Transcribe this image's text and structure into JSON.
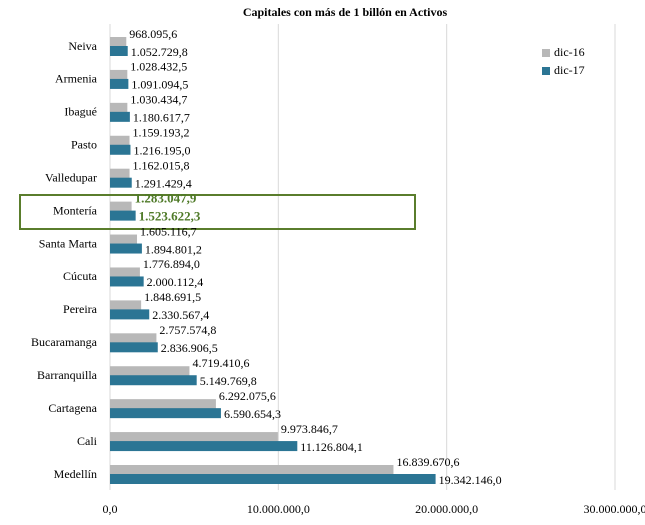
{
  "chart_data": {
    "type": "bar",
    "orientation": "horizontal",
    "title": "Capitales  con más de 1 billón en Activos",
    "categories": [
      "Neiva",
      "Armenia",
      "Ibagué",
      "Pasto",
      "Valledupar",
      "Montería",
      "Santa Marta",
      "Cúcuta",
      "Pereira",
      "Bucaramanga",
      "Barranquilla",
      "Cartagena",
      "Cali",
      "Medellín"
    ],
    "series": [
      {
        "name": "dic-16",
        "color": "#b8b8b8",
        "values": [
          968095.6,
          1028432.5,
          1030434.7,
          1159193.2,
          1162015.8,
          1283047.9,
          1605116.7,
          1776894.0,
          1848691.5,
          2757574.8,
          4719410.6,
          6292075.6,
          9973846.7,
          16839670.6
        ],
        "value_labels": [
          "968.095,6",
          "1.028.432,5",
          "1.030.434,7",
          "1.159.193,2",
          "1.162.015,8",
          "1.283.047,9",
          "1.605.116,7",
          "1.776.894,0",
          "1.848.691,5",
          "2.757.574,8",
          "4.719.410,6",
          "6.292.075,6",
          "9.973.846,7",
          "16.839.670,6"
        ]
      },
      {
        "name": "dic-17",
        "color": "#2b7594",
        "values": [
          1052729.8,
          1091094.5,
          1180617.7,
          1216195.0,
          1291429.4,
          1523622.3,
          1894801.2,
          2000112.4,
          2330567.4,
          2836906.5,
          5149769.8,
          6590654.3,
          11126804.1,
          19342146.0
        ],
        "value_labels": [
          "1.052.729,8",
          "1.091.094,5",
          "1.180.617,7",
          "1.216.195,0",
          "1.291.429,4",
          "1.523.622,3",
          "1.894.801,2",
          "2.000.112,4",
          "2.330.567,4",
          "2.836.906,5",
          "5.149.769,8",
          "6.590.654,3",
          "11.126.804,1",
          "19.342.146,0"
        ]
      }
    ],
    "xlim": [
      0,
      30000000
    ],
    "xticks": [
      {
        "value": 0,
        "label": "0,0"
      },
      {
        "value": 10000000,
        "label": "10.000.000,0"
      },
      {
        "value": 20000000,
        "label": "20.000.000,0"
      },
      {
        "value": 30000000,
        "label": "30.000.000,0"
      }
    ],
    "grid": true,
    "legend": "top-right"
  }
}
